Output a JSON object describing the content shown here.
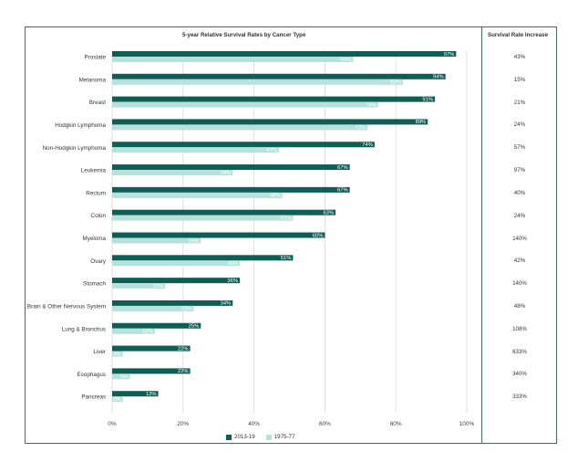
{
  "chart_data": {
    "type": "bar",
    "orientation": "horizontal",
    "title": "5-year Relative Survival Rates by Cancer Type",
    "side_title": "Survival Rate Increase",
    "categories": [
      "Prostate",
      "Melanoma",
      "Breast",
      "Hodgkin Lymphoma",
      "Non-Hodgkin Lymphoma",
      "Leukemia",
      "Rectum",
      "Colon",
      "Myeloma",
      "Ovary",
      "Stomach",
      "Brain & Other Nervous System",
      "Lung & Bronchus",
      "Liver",
      "Esophagus",
      "Pancreas"
    ],
    "series": [
      {
        "name": "2013-19",
        "color": "#0f5e55",
        "values": [
          97,
          94,
          91,
          89,
          74,
          67,
          67,
          63,
          60,
          51,
          36,
          34,
          25,
          22,
          22,
          13
        ]
      },
      {
        "name": "1975-77",
        "color": "#b9e1db",
        "values": [
          68,
          82,
          75,
          72,
          47,
          34,
          48,
          51,
          25,
          36,
          15,
          23,
          12,
          3,
          5,
          3
        ]
      }
    ],
    "increase": [
      "43%",
      "15%",
      "21%",
      "24%",
      "57%",
      "97%",
      "40%",
      "24%",
      "140%",
      "42%",
      "140%",
      "48%",
      "108%",
      "633%",
      "340%",
      "333%"
    ],
    "value_suffix": "%",
    "xlim": [
      0,
      100
    ],
    "xticks": [
      "0%",
      "20%",
      "40%",
      "60%",
      "80%",
      "100%"
    ],
    "grid": true,
    "legend_position": "bottom-center"
  }
}
